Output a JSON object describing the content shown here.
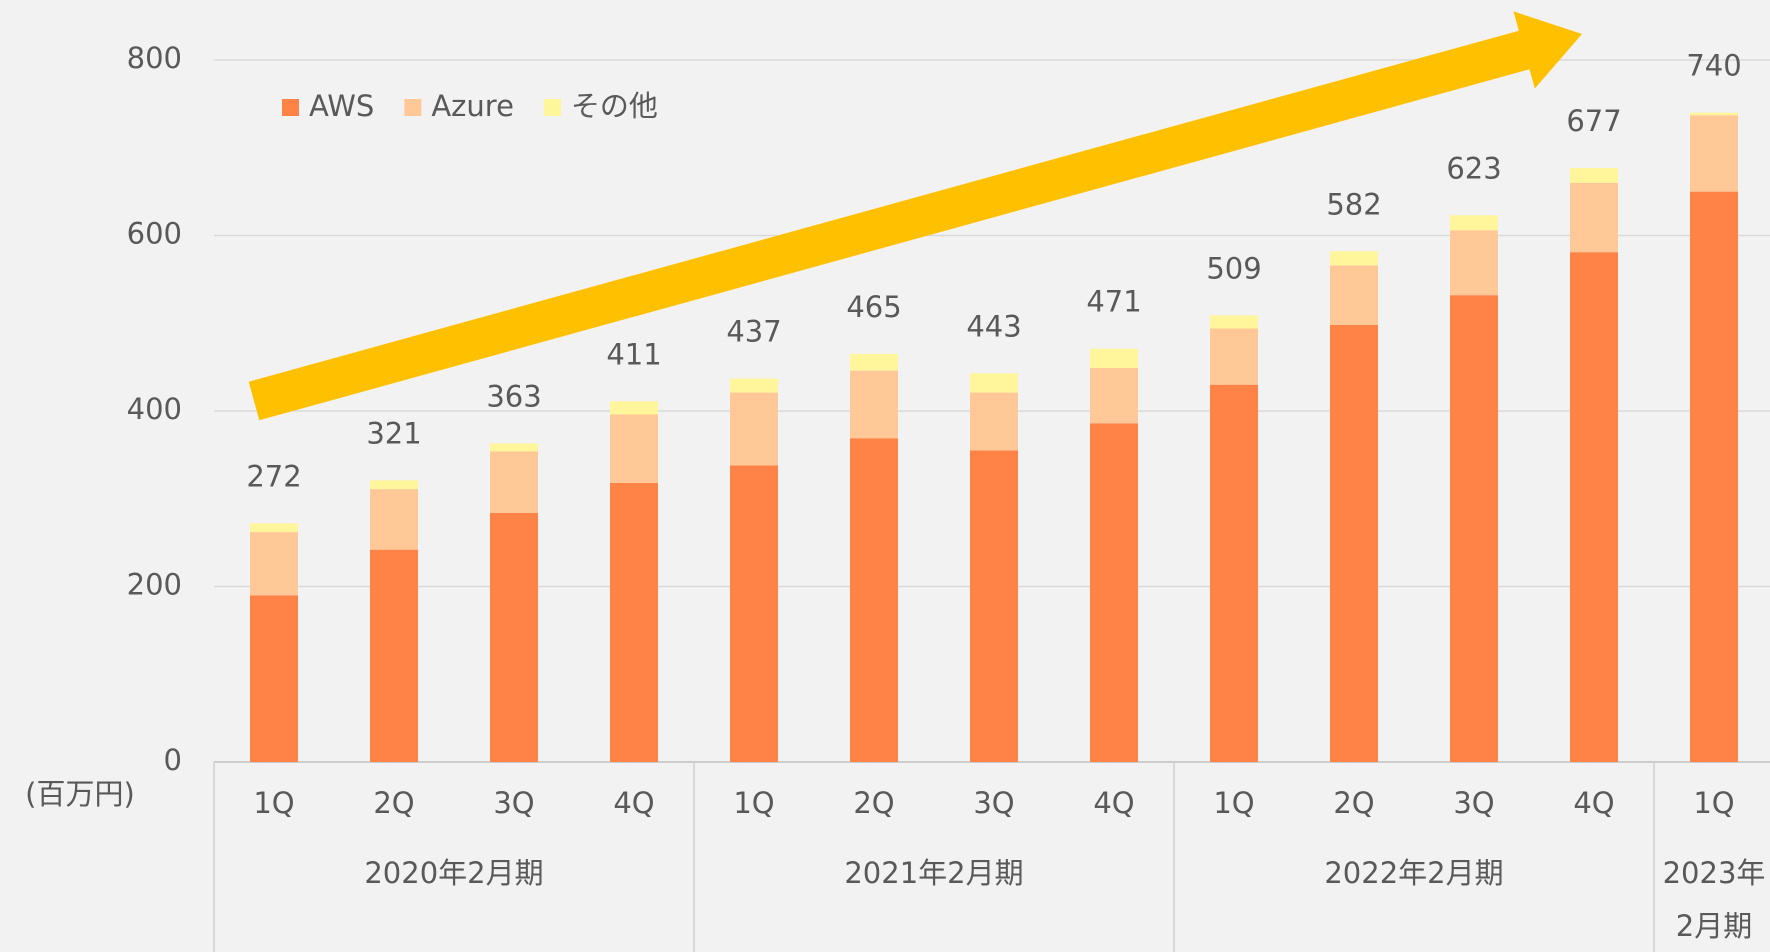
{
  "chart_data": {
    "type": "stacked_bar",
    "y_unit_label": "(百万円)",
    "categories": [
      "1Q",
      "2Q",
      "3Q",
      "4Q",
      "1Q",
      "2Q",
      "3Q",
      "4Q",
      "1Q",
      "2Q",
      "3Q",
      "4Q",
      "1Q"
    ],
    "groups": [
      {
        "lines": [
          "2020年2月期"
        ],
        "start": 0,
        "end": 3
      },
      {
        "lines": [
          "2021年2月期"
        ],
        "start": 4,
        "end": 7
      },
      {
        "lines": [
          "2022年2月期"
        ],
        "start": 8,
        "end": 11
      },
      {
        "lines": [
          "2023年",
          "2月期"
        ],
        "start": 12,
        "end": 12
      }
    ],
    "series": [
      {
        "name": "AWS",
        "color": "#ff8347",
        "values": [
          190,
          242,
          284,
          318,
          338,
          369,
          355,
          386,
          430,
          498,
          532,
          581,
          650
        ]
      },
      {
        "name": "Azure",
        "color": "#ffc896",
        "values": [
          72,
          69,
          70,
          78,
          83,
          77,
          66,
          63,
          64,
          68,
          74,
          79,
          87
        ]
      },
      {
        "name": "その他",
        "color": "#fff59a",
        "values": [
          10,
          10,
          9,
          15,
          16,
          19,
          22,
          22,
          15,
          16,
          17,
          17,
          3
        ]
      }
    ],
    "totals": [
      272,
      321,
      363,
      411,
      437,
      465,
      443,
      471,
      509,
      582,
      623,
      677,
      740
    ],
    "ylim": [
      0,
      800
    ],
    "yticks": [
      0,
      200,
      400,
      600,
      800
    ],
    "grid": true,
    "legend": "top-left"
  }
}
